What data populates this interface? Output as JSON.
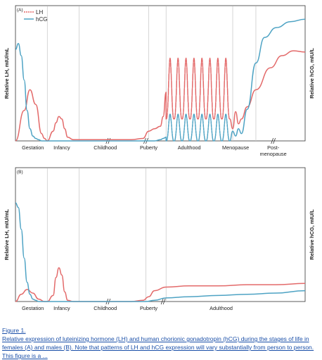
{
  "caption": {
    "title": "Figure 1.",
    "body": "Relative expression of luteinizing hormone (LH) and human chorionic gonadotropin (hCG) during the stages of life in females (A) and males (B). Note that patterns of LH and hCG expression will vary substantially from person to person. This figure is a ..."
  },
  "colors": {
    "lh": "#e36a6a",
    "hcg": "#4ea3c4",
    "axis": "#333333",
    "divider": "#cccccc"
  },
  "chart_data": [
    {
      "type": "line",
      "panel_label": "(A)",
      "ylabel_left": "Relative LH, mIU/mL",
      "ylabel_right": "Relative hCG, mIU/L",
      "xlim": [
        0,
        100
      ],
      "ylim": [
        0,
        100
      ],
      "legend": {
        "placement": "top-left",
        "entries": [
          "LH",
          "hCG"
        ]
      },
      "stages": [
        {
          "label": "Gestation",
          "x": 6
        },
        {
          "label": "Infancy",
          "x": 16
        },
        {
          "label": "Childhood",
          "x": 31
        },
        {
          "label": "Puberty",
          "x": 46
        },
        {
          "label": "Adulthood",
          "x": 60
        },
        {
          "label": "Menopause",
          "x": 76
        },
        {
          "label": "Post-",
          "label2": "menopause",
          "x": 89
        }
      ],
      "dividers": [
        11,
        22,
        46,
        52,
        75,
        83
      ],
      "breaks": [
        32,
        45,
        89
      ],
      "series": [
        {
          "name": "LH",
          "x": [
            0,
            3,
            5,
            7,
            9,
            10,
            11,
            13,
            14,
            15,
            16,
            17,
            18,
            20,
            22,
            30,
            40,
            44,
            46,
            48,
            50,
            51,
            52
          ],
          "y": [
            0,
            25,
            42,
            30,
            6,
            2,
            0,
            8,
            15,
            20,
            18,
            10,
            3,
            1,
            1,
            1,
            1,
            2,
            8,
            10,
            12,
            20,
            40
          ]
        },
        {
          "name": "hCG",
          "x": [
            0,
            1,
            2,
            3,
            4,
            5,
            6,
            7,
            8,
            9,
            10,
            12,
            16,
            22,
            40,
            48,
            50,
            51,
            52
          ],
          "y": [
            75,
            80,
            70,
            50,
            25,
            10,
            4,
            2,
            1,
            0,
            0,
            0,
            0,
            0,
            0,
            0,
            1,
            2,
            3
          ]
        }
      ],
      "series_oscillation": {
        "LH": {
          "start": 52,
          "end": 74,
          "cycles": 8,
          "low": 18,
          "high": 68
        },
        "hCG": {
          "start": 52,
          "end": 74,
          "cycles": 8,
          "low": 0,
          "high": 22
        }
      },
      "series_tail": {
        "LH": {
          "x": [
            74,
            75,
            76,
            77,
            78,
            80,
            83,
            88,
            92,
            96,
            100
          ],
          "y": [
            18,
            10,
            24,
            14,
            18,
            28,
            42,
            60,
            70,
            74,
            73
          ]
        },
        "hCG": {
          "x": [
            74,
            75,
            76,
            77,
            78,
            80,
            83,
            86,
            90,
            95,
            100
          ],
          "y": [
            0,
            8,
            4,
            10,
            6,
            26,
            64,
            85,
            93,
            98,
            100
          ]
        }
      }
    },
    {
      "type": "line",
      "panel_label": "(B)",
      "ylabel_left": "Relative LH, mIU/mL",
      "ylabel_right": "Relative hCG, mIU/L",
      "xlim": [
        0,
        100
      ],
      "ylim": [
        0,
        100
      ],
      "stages": [
        {
          "label": "Gestation",
          "x": 6
        },
        {
          "label": "Infancy",
          "x": 16
        },
        {
          "label": "Childhood",
          "x": 31
        },
        {
          "label": "Puberty",
          "x": 46
        },
        {
          "label": "Adulthood",
          "x": 71
        }
      ],
      "dividers": [
        11,
        22,
        45,
        52
      ],
      "breaks": [
        32,
        51
      ],
      "series": [
        {
          "name": "LH",
          "x": [
            0,
            2,
            4,
            6,
            8,
            10,
            11,
            13,
            14,
            15,
            16,
            17,
            18,
            20,
            22,
            40,
            44,
            46,
            48,
            52,
            60,
            70,
            80,
            90,
            100
          ],
          "y": [
            0,
            6,
            10,
            7,
            2,
            0,
            0,
            5,
            20,
            28,
            22,
            8,
            1,
            0,
            0,
            0,
            1,
            4,
            9,
            12,
            13,
            13,
            14,
            14,
            15
          ]
        },
        {
          "name": "hCG",
          "x": [
            0,
            1,
            2,
            3,
            4,
            5,
            6,
            7,
            8,
            10,
            12,
            22,
            40,
            45,
            48,
            52,
            60,
            70,
            80,
            90,
            100
          ],
          "y": [
            82,
            78,
            60,
            36,
            16,
            6,
            2,
            1,
            0,
            0,
            0,
            0,
            0,
            0,
            1,
            3,
            4,
            5,
            6,
            7,
            9
          ]
        }
      ]
    }
  ]
}
